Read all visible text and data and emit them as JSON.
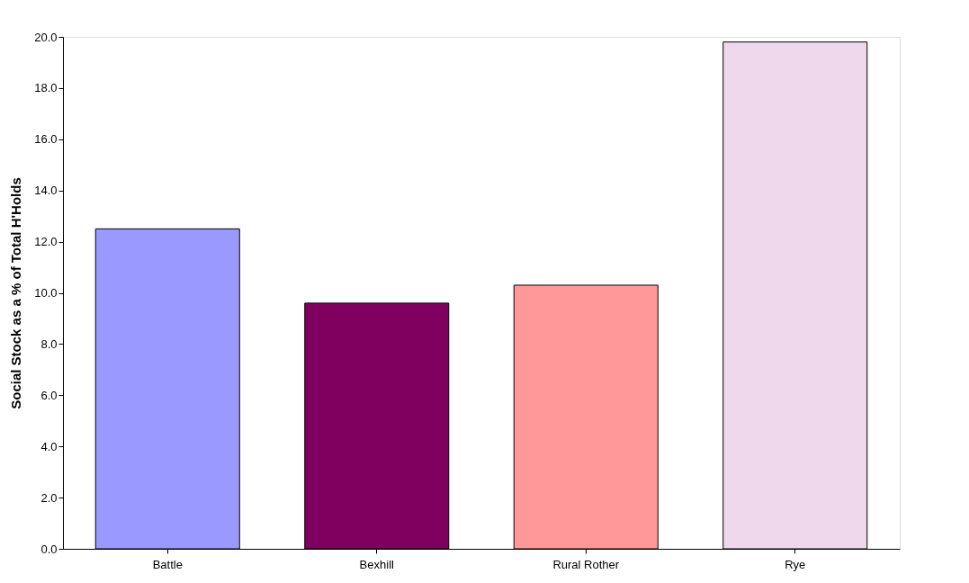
{
  "chart_data": {
    "type": "bar",
    "ylabel": "Social Stock as a % of Total H'Holds",
    "categories": [
      "Battle",
      "Bexhill",
      "Rural Rother",
      "Rye"
    ],
    "values": [
      12.5,
      9.6,
      10.3,
      19.8
    ],
    "colors": [
      "#9999ff",
      "#800060",
      "#ff9999",
      "#f0d8ec"
    ],
    "ylim": [
      0,
      20
    ],
    "yticks": [
      {
        "value": 0,
        "label": "0.0"
      },
      {
        "value": 2,
        "label": "2.0"
      },
      {
        "value": 4,
        "label": "4.0"
      },
      {
        "value": 6,
        "label": "6.0"
      },
      {
        "value": 8,
        "label": "8.0"
      },
      {
        "value": 10,
        "label": "10.0"
      },
      {
        "value": 12,
        "label": "12.0"
      },
      {
        "value": 14,
        "label": "14.0"
      },
      {
        "value": 16,
        "label": "16.0"
      },
      {
        "value": 18,
        "label": "18.0"
      },
      {
        "value": 20,
        "label": "20.0"
      }
    ],
    "grid": false,
    "legend": false
  }
}
